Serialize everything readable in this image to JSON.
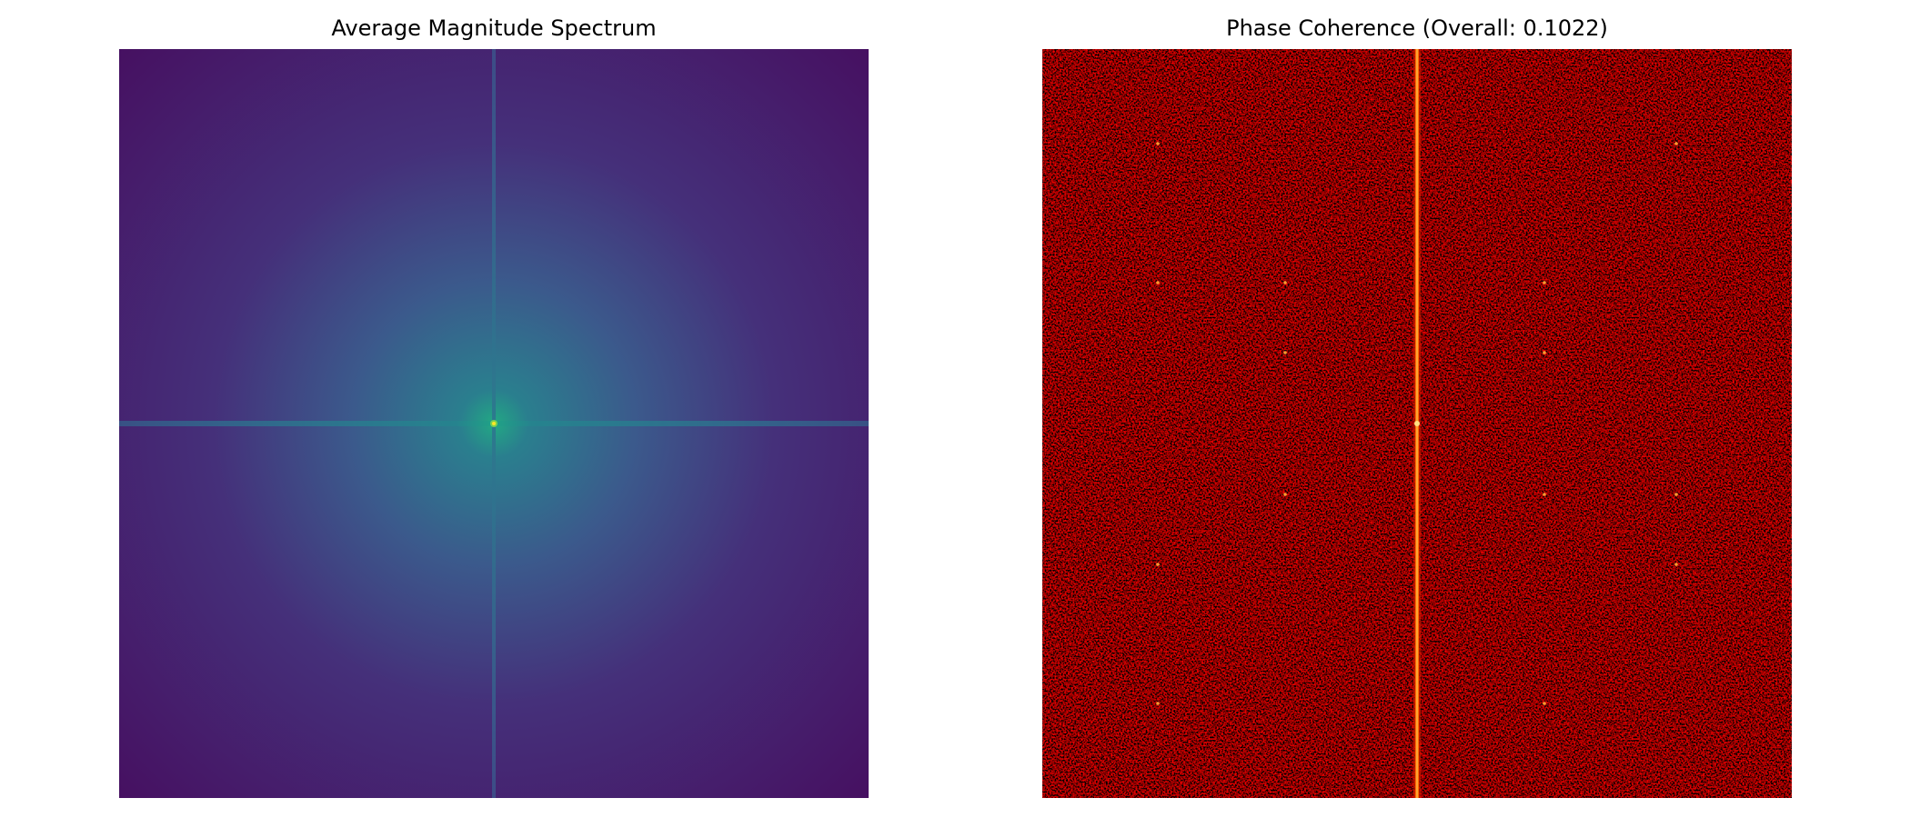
{
  "chart_data": [
    {
      "type": "image",
      "title": "Average Magnitude Spectrum"
    },
    {
      "type": "image",
      "title": "Phase Coherence (Overall: 0.1022)"
    }
  ]
}
